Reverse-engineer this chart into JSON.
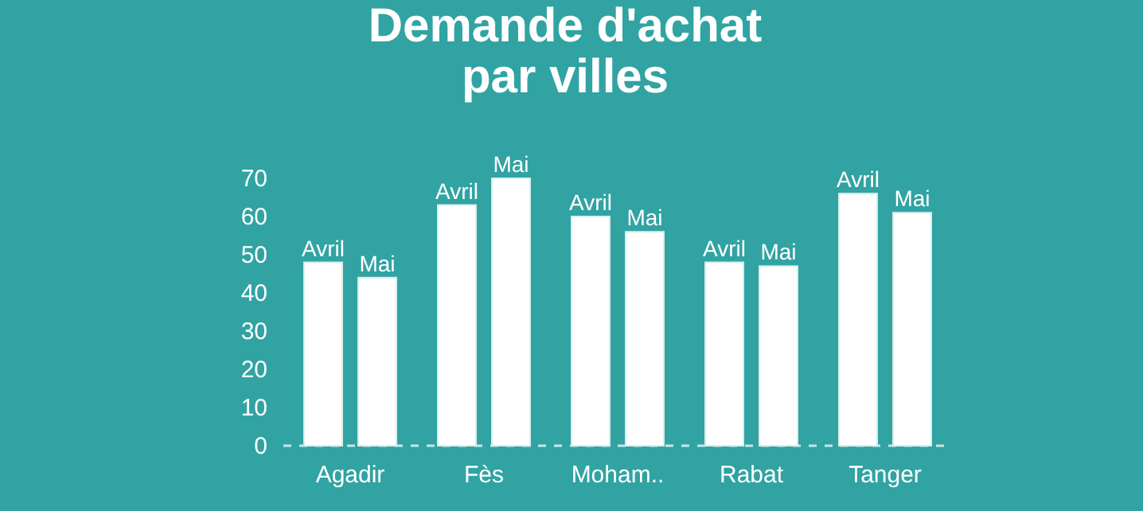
{
  "chart_data": {
    "type": "bar",
    "title": "Demande d'achat\npar villes",
    "categories": [
      "Agadir",
      "Fès",
      "Moham..",
      "Rabat",
      "Tanger"
    ],
    "series": [
      {
        "name": "Avril",
        "color": "#ffffff",
        "values": [
          48,
          63,
          60,
          48,
          66
        ]
      },
      {
        "name": "Mai",
        "color": "#ffffff",
        "values": [
          44,
          70,
          56,
          47,
          61
        ]
      }
    ],
    "ylim": [
      0,
      70
    ],
    "yticks": [
      0,
      10,
      20,
      30,
      40,
      50,
      60,
      70
    ],
    "grid": false
  }
}
